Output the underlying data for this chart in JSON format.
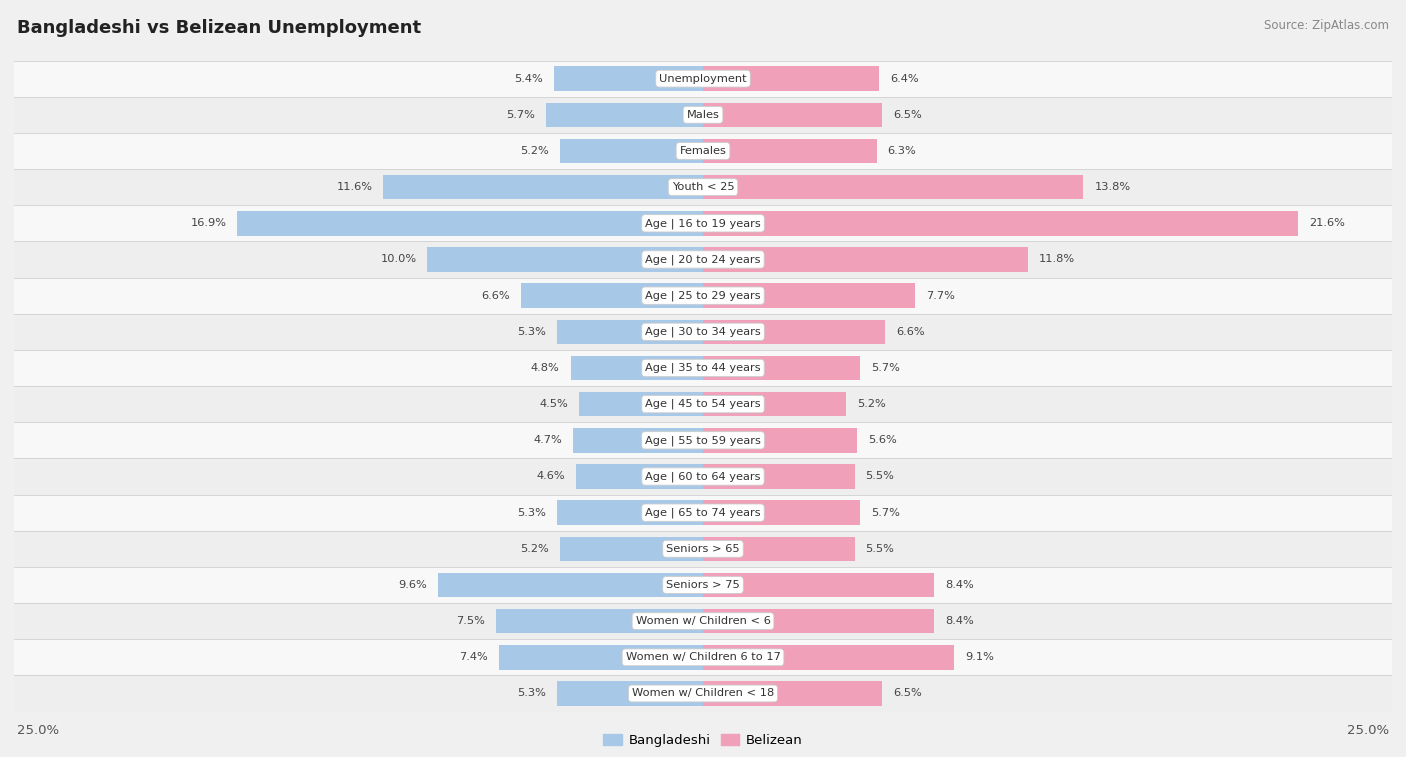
{
  "title": "Bangladeshi vs Belizean Unemployment",
  "source": "Source: ZipAtlas.com",
  "categories": [
    "Unemployment",
    "Males",
    "Females",
    "Youth < 25",
    "Age | 16 to 19 years",
    "Age | 20 to 24 years",
    "Age | 25 to 29 years",
    "Age | 30 to 34 years",
    "Age | 35 to 44 years",
    "Age | 45 to 54 years",
    "Age | 55 to 59 years",
    "Age | 60 to 64 years",
    "Age | 65 to 74 years",
    "Seniors > 65",
    "Seniors > 75",
    "Women w/ Children < 6",
    "Women w/ Children 6 to 17",
    "Women w/ Children < 18"
  ],
  "bangladeshi": [
    5.4,
    5.7,
    5.2,
    11.6,
    16.9,
    10.0,
    6.6,
    5.3,
    4.8,
    4.5,
    4.7,
    4.6,
    5.3,
    5.2,
    9.6,
    7.5,
    7.4,
    5.3
  ],
  "belizean": [
    6.4,
    6.5,
    6.3,
    13.8,
    21.6,
    11.8,
    7.7,
    6.6,
    5.7,
    5.2,
    5.6,
    5.5,
    5.7,
    5.5,
    8.4,
    8.4,
    9.1,
    6.5
  ],
  "xlim": 25.0,
  "bangladeshi_color": "#a8c8e8",
  "belizean_color": "#f0a0b8",
  "row_bg_light": "#f8f8f8",
  "row_bg_mid": "#eeeeee",
  "fig_bg": "#f0f0f0",
  "label_color": "#555555",
  "title_color": "#222222",
  "legend_bangladeshi": "Bangladeshi",
  "legend_belizean": "Belizean",
  "value_fontsize": 8.2,
  "cat_fontsize": 8.2,
  "title_fontsize": 13,
  "source_fontsize": 8.5,
  "legend_fontsize": 9.5
}
